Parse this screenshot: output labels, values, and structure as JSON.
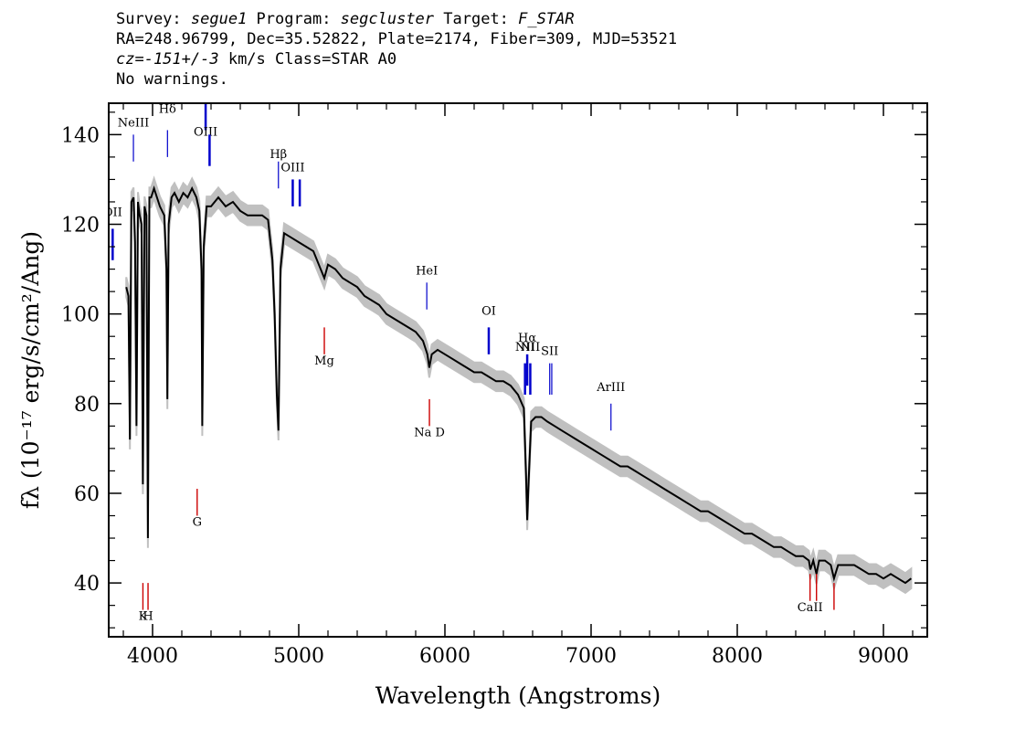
{
  "header": {
    "line1": {
      "survey_label": "Survey: ",
      "survey": "segue1",
      "program_label": " Program: ",
      "program": "segcluster",
      "target_label": " Target: ",
      "target": "F_STAR"
    },
    "line2": "RA=248.96799, Dec=35.52822, Plate=2174, Fiber=309, MJD=53521",
    "line3": {
      "cz": "cz=-151+/-3",
      "rest": " km/s Class=STAR A0"
    },
    "line4": "No warnings."
  },
  "chart_data": {
    "type": "line",
    "xlabel": "Wavelength (Angstroms)",
    "ylabel": "fλ (10⁻¹⁷ erg/s/cm²/Ang)",
    "xlim": [
      3700,
      9300
    ],
    "ylim": [
      28,
      147
    ],
    "x_ticks": [
      4000,
      5000,
      6000,
      7000,
      8000,
      9000
    ],
    "y_ticks": [
      40,
      60,
      80,
      100,
      120,
      140
    ],
    "colors": {
      "spectrum": "#000000",
      "error_band": "#c0c0c0",
      "emission_marker": "#0000cc",
      "absorption_marker": "#cc0000"
    },
    "spectrum": [
      [
        3820,
        106
      ],
      [
        3835,
        104
      ],
      [
        3845,
        72
      ],
      [
        3855,
        125
      ],
      [
        3870,
        126
      ],
      [
        3880,
        116
      ],
      [
        3890,
        75
      ],
      [
        3900,
        125
      ],
      [
        3912,
        122
      ],
      [
        3925,
        120
      ],
      [
        3934,
        62
      ],
      [
        3945,
        124
      ],
      [
        3958,
        122
      ],
      [
        3968,
        50
      ],
      [
        3978,
        126
      ],
      [
        3990,
        126
      ],
      [
        4010,
        128
      ],
      [
        4030,
        126
      ],
      [
        4050,
        124
      ],
      [
        4080,
        122
      ],
      [
        4095,
        110
      ],
      [
        4101,
        81
      ],
      [
        4110,
        120
      ],
      [
        4130,
        126
      ],
      [
        4150,
        127
      ],
      [
        4180,
        125
      ],
      [
        4210,
        127
      ],
      [
        4240,
        126
      ],
      [
        4270,
        128
      ],
      [
        4300,
        126
      ],
      [
        4320,
        123
      ],
      [
        4335,
        110
      ],
      [
        4340,
        75
      ],
      [
        4350,
        115
      ],
      [
        4370,
        124
      ],
      [
        4400,
        124
      ],
      [
        4450,
        126
      ],
      [
        4500,
        124
      ],
      [
        4550,
        125
      ],
      [
        4600,
        123
      ],
      [
        4650,
        122
      ],
      [
        4700,
        122
      ],
      [
        4750,
        122
      ],
      [
        4790,
        121
      ],
      [
        4820,
        112
      ],
      [
        4835,
        100
      ],
      [
        4850,
        82
      ],
      [
        4861,
        74
      ],
      [
        4875,
        110
      ],
      [
        4900,
        118
      ],
      [
        4950,
        117
      ],
      [
        5000,
        116
      ],
      [
        5050,
        115
      ],
      [
        5100,
        114
      ],
      [
        5150,
        110
      ],
      [
        5175,
        108
      ],
      [
        5200,
        111
      ],
      [
        5250,
        110
      ],
      [
        5300,
        108
      ],
      [
        5350,
        107
      ],
      [
        5400,
        106
      ],
      [
        5450,
        104
      ],
      [
        5500,
        103
      ],
      [
        5550,
        102
      ],
      [
        5600,
        100
      ],
      [
        5650,
        99
      ],
      [
        5700,
        98
      ],
      [
        5750,
        97
      ],
      [
        5800,
        96
      ],
      [
        5850,
        94
      ],
      [
        5880,
        91
      ],
      [
        5893,
        88
      ],
      [
        5910,
        91
      ],
      [
        5950,
        92
      ],
      [
        6000,
        91
      ],
      [
        6050,
        90
      ],
      [
        6100,
        89
      ],
      [
        6150,
        88
      ],
      [
        6200,
        87
      ],
      [
        6250,
        87
      ],
      [
        6300,
        86
      ],
      [
        6350,
        85
      ],
      [
        6400,
        85
      ],
      [
        6450,
        84
      ],
      [
        6500,
        82
      ],
      [
        6540,
        79
      ],
      [
        6555,
        64
      ],
      [
        6563,
        54
      ],
      [
        6572,
        62
      ],
      [
        6590,
        76
      ],
      [
        6620,
        77
      ],
      [
        6660,
        77
      ],
      [
        6700,
        76
      ],
      [
        6750,
        75
      ],
      [
        6800,
        74
      ],
      [
        6850,
        73
      ],
      [
        6900,
        72
      ],
      [
        6950,
        71
      ],
      [
        7000,
        70
      ],
      [
        7050,
        69
      ],
      [
        7100,
        68
      ],
      [
        7150,
        67
      ],
      [
        7200,
        66
      ],
      [
        7250,
        66
      ],
      [
        7300,
        65
      ],
      [
        7350,
        64
      ],
      [
        7400,
        63
      ],
      [
        7450,
        62
      ],
      [
        7500,
        61
      ],
      [
        7550,
        60
      ],
      [
        7600,
        59
      ],
      [
        7650,
        58
      ],
      [
        7700,
        57
      ],
      [
        7750,
        56
      ],
      [
        7800,
        56
      ],
      [
        7850,
        55
      ],
      [
        7900,
        54
      ],
      [
        7950,
        53
      ],
      [
        8000,
        52
      ],
      [
        8050,
        51
      ],
      [
        8100,
        51
      ],
      [
        8150,
        50
      ],
      [
        8200,
        49
      ],
      [
        8250,
        48
      ],
      [
        8300,
        48
      ],
      [
        8350,
        47
      ],
      [
        8400,
        46
      ],
      [
        8450,
        46
      ],
      [
        8490,
        45
      ],
      [
        8500,
        43
      ],
      [
        8520,
        45
      ],
      [
        8542,
        42
      ],
      [
        8560,
        45
      ],
      [
        8600,
        45
      ],
      [
        8640,
        44
      ],
      [
        8662,
        41
      ],
      [
        8690,
        44
      ],
      [
        8750,
        44
      ],
      [
        8800,
        44
      ],
      [
        8850,
        43
      ],
      [
        8900,
        42
      ],
      [
        8950,
        42
      ],
      [
        9000,
        41
      ],
      [
        9050,
        42
      ],
      [
        9100,
        41
      ],
      [
        9150,
        40
      ],
      [
        9190,
        41
      ]
    ],
    "emission_lines": [
      {
        "label": "OII",
        "x": 3727,
        "y_text": 121,
        "y_top": 119,
        "y_bottom": 112,
        "thick": true
      },
      {
        "label": "NeIII",
        "x": 3869,
        "y_text": 141,
        "y_top": 140,
        "y_bottom": 134
      },
      {
        "label": "Hδ",
        "x": 4102,
        "y_text": 144,
        "y_top": 141,
        "y_bottom": 135
      },
      {
        "label": "OIII",
        "x": 4363,
        "y_text": 139,
        "y_top": 147,
        "y_bottom": 141,
        "thick": true
      },
      {
        "label": "",
        "x": 4390,
        "y_text": 0,
        "y_top": 140,
        "y_bottom": 133,
        "thick": true
      },
      {
        "label": "Hβ",
        "x": 4861,
        "y_text": 134,
        "y_top": 134,
        "y_bottom": 128
      },
      {
        "label": "OIII",
        "x": 4959,
        "y_text": 131,
        "y_top": 130,
        "y_bottom": 124,
        "thick": true
      },
      {
        "label": "",
        "x": 5007,
        "y_text": 0,
        "y_top": 130,
        "y_bottom": 124,
        "thick": true
      },
      {
        "label": "HeI",
        "x": 5876,
        "y_text": 108,
        "y_top": 107,
        "y_bottom": 101
      },
      {
        "label": "OI",
        "x": 6300,
        "y_text": 99,
        "y_top": 97,
        "y_bottom": 91,
        "thick": true
      },
      {
        "label": "NII",
        "x": 6548,
        "y_text": 91,
        "y_top": 89,
        "y_bottom": 82,
        "thick": true
      },
      {
        "label": "Hα",
        "x": 6563,
        "y_text": 93,
        "y_top": 91,
        "y_bottom": 84,
        "thick": true
      },
      {
        "label": "NII",
        "x": 6584,
        "y_text": 91,
        "y_top": 89,
        "y_bottom": 82,
        "thick": true
      },
      {
        "label": "SII",
        "x": 6717,
        "y_text": 90,
        "y_top": 89,
        "y_bottom": 82
      },
      {
        "label": "",
        "x": 6731,
        "y_text": 0,
        "y_top": 89,
        "y_bottom": 82
      },
      {
        "label": "ArIII",
        "x": 7136,
        "y_text": 82,
        "y_top": 80,
        "y_bottom": 74
      }
    ],
    "absorption_lines": [
      {
        "label": "K",
        "x": 3934,
        "y_top": 40,
        "y_bottom": 34,
        "y_text": 35
      },
      {
        "label": "H",
        "x": 3969,
        "y_top": 40,
        "y_bottom": 34,
        "y_text": 35
      },
      {
        "label": "G",
        "x": 4305,
        "y_top": 61,
        "y_bottom": 55,
        "y_text": 56
      },
      {
        "label": "Mg",
        "x": 5175,
        "y_top": 97,
        "y_bottom": 91,
        "y_text": 92
      },
      {
        "label": "Na D",
        "x": 5894,
        "y_top": 81,
        "y_bottom": 75,
        "y_text": 76
      },
      {
        "label": "CaII",
        "x": 8498,
        "y_top": 42,
        "y_bottom": 36,
        "y_text": 37
      },
      {
        "label": "",
        "x": 8542,
        "y_top": 42,
        "y_bottom": 36,
        "y_text": 0
      },
      {
        "label": "",
        "x": 8662,
        "y_top": 40,
        "y_bottom": 34,
        "y_text": 0
      }
    ]
  }
}
